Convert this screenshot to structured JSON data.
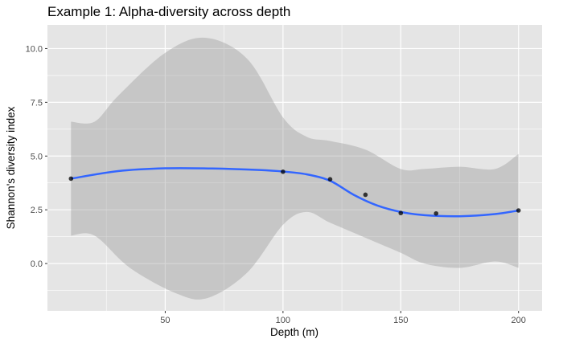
{
  "chart_data": {
    "type": "line",
    "title": "Example 1: Alpha-diversity across depth",
    "xlabel": "Depth (m)",
    "ylabel": "Shannon's diversity index",
    "xlim": [
      0,
      210
    ],
    "ylim": [
      -2.2,
      11.1
    ],
    "xticks": [
      {
        "value": 50,
        "label": "50"
      },
      {
        "value": 100,
        "label": "100"
      },
      {
        "value": 150,
        "label": "150"
      },
      {
        "value": 200,
        "label": "200"
      }
    ],
    "yticks": [
      {
        "value": 0,
        "label": "0.0"
      },
      {
        "value": 2.5,
        "label": "2.5"
      },
      {
        "value": 5,
        "label": "5.0"
      },
      {
        "value": 7.5,
        "label": "7.5"
      },
      {
        "value": 10,
        "label": "10.0"
      }
    ],
    "grid": true,
    "points": [
      {
        "x": 10,
        "y": 3.95
      },
      {
        "x": 100,
        "y": 4.27
      },
      {
        "x": 120,
        "y": 3.92
      },
      {
        "x": 135,
        "y": 3.2
      },
      {
        "x": 150,
        "y": 2.35
      },
      {
        "x": 165,
        "y": 2.33
      },
      {
        "x": 200,
        "y": 2.47
      }
    ],
    "smooth": [
      {
        "x": 10,
        "y": 3.95
      },
      {
        "x": 30,
        "y": 4.3
      },
      {
        "x": 50,
        "y": 4.43
      },
      {
        "x": 70,
        "y": 4.42
      },
      {
        "x": 90,
        "y": 4.35
      },
      {
        "x": 100,
        "y": 4.28
      },
      {
        "x": 110,
        "y": 4.15
      },
      {
        "x": 120,
        "y": 3.85
      },
      {
        "x": 130,
        "y": 3.2
      },
      {
        "x": 140,
        "y": 2.7
      },
      {
        "x": 150,
        "y": 2.4
      },
      {
        "x": 160,
        "y": 2.25
      },
      {
        "x": 175,
        "y": 2.2
      },
      {
        "x": 190,
        "y": 2.3
      },
      {
        "x": 200,
        "y": 2.47
      }
    ],
    "confidence_band": {
      "upper": [
        {
          "x": 10,
          "y": 6.6
        },
        {
          "x": 20,
          "y": 6.6
        },
        {
          "x": 30,
          "y": 7.8
        },
        {
          "x": 50,
          "y": 9.8
        },
        {
          "x": 67,
          "y": 10.5
        },
        {
          "x": 85,
          "y": 9.5
        },
        {
          "x": 100,
          "y": 6.8
        },
        {
          "x": 110,
          "y": 5.9
        },
        {
          "x": 120,
          "y": 5.7
        },
        {
          "x": 135,
          "y": 5.3
        },
        {
          "x": 150,
          "y": 4.4
        },
        {
          "x": 160,
          "y": 4.4
        },
        {
          "x": 175,
          "y": 4.5
        },
        {
          "x": 190,
          "y": 4.4
        },
        {
          "x": 200,
          "y": 5.1
        }
      ],
      "lower": [
        {
          "x": 10,
          "y": 1.3
        },
        {
          "x": 20,
          "y": 1.3
        },
        {
          "x": 35,
          "y": -0.2
        },
        {
          "x": 55,
          "y": -1.4
        },
        {
          "x": 68,
          "y": -1.6
        },
        {
          "x": 85,
          "y": -0.4
        },
        {
          "x": 100,
          "y": 1.8
        },
        {
          "x": 110,
          "y": 2.4
        },
        {
          "x": 120,
          "y": 1.9
        },
        {
          "x": 135,
          "y": 1.2
        },
        {
          "x": 150,
          "y": 0.5
        },
        {
          "x": 160,
          "y": 0.0
        },
        {
          "x": 175,
          "y": -0.2
        },
        {
          "x": 190,
          "y": 0.1
        },
        {
          "x": 200,
          "y": -0.2
        }
      ]
    },
    "colors": {
      "panel_background": "#e5e5e5",
      "grid": "#ffffff",
      "ribbon": "#999999",
      "line": "#3366ff",
      "point": "#000000",
      "tick_label": "#4d4d4d",
      "tick_mark": "#333333"
    }
  }
}
